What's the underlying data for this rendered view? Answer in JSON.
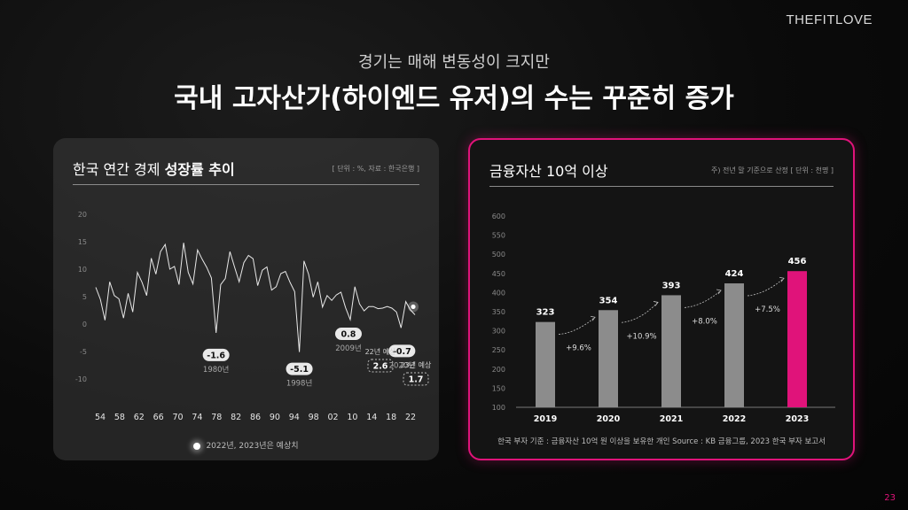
{
  "brand": "THEFITLOVE",
  "subtitle": "경기는 매해 변동성이 크지만",
  "title": "국내 고자산가(하이엔드 유저)의 수는 꾸준히 증가",
  "page_number": "23",
  "left_card": {
    "title_plain": "한국 연간 경제 ",
    "title_bold": "성장률 추이",
    "note": "[ 단위 : %, 자료 : 한국은행 ]",
    "legend": "2022년, 2023년은 예상치"
  },
  "right_card": {
    "title": "금융자산 10억 이상",
    "note": "주) 전년 말 기준으로 산정   [ 단위 : 천명 ]",
    "source": "한국 부자 기준 : 금융자산 10억 원 이상을 보유한 개인 Source :  KB 금융그룹, 2023 한국 부자 보고서"
  },
  "chart_data": [
    {
      "type": "line",
      "title": "한국 연간 경제 성장률 추이",
      "y_ticks": [
        "20",
        "15",
        "10",
        "5",
        "0",
        "-5",
        "-10"
      ],
      "ylim": [
        -10,
        20
      ],
      "x_ticks": [
        "54",
        "58",
        "62",
        "66",
        "70",
        "74",
        "78",
        "82",
        "86",
        "90",
        "94",
        "98",
        "02",
        "10",
        "14",
        "18",
        "22"
      ],
      "series": [
        {
          "x": [
            1954,
            1955,
            1956,
            1957,
            1958,
            1959,
            1960,
            1961,
            1962,
            1963,
            1964,
            1965,
            1966,
            1967,
            1968,
            1969,
            1970,
            1971,
            1972,
            1973,
            1974,
            1975,
            1976,
            1977,
            1978,
            1979,
            1980,
            1981,
            1982,
            1983,
            1984,
            1985,
            1986,
            1987,
            1988,
            1989,
            1990,
            1991,
            1992,
            1993,
            1994,
            1995,
            1996,
            1997,
            1998,
            1999,
            2000,
            2001,
            2002,
            2003,
            2004,
            2005,
            2006,
            2007,
            2008,
            2009,
            2010,
            2011,
            2012,
            2013,
            2014,
            2015,
            2016,
            2017,
            2018,
            2019,
            2020,
            2021,
            2022,
            2023
          ],
          "values": [
            6.7,
            4.5,
            0.7,
            7.7,
            5.2,
            4.6,
            1.1,
            5.6,
            2.2,
            9.4,
            7.6,
            5.2,
            12.0,
            9.1,
            13.2,
            14.5,
            10.0,
            10.5,
            7.2,
            14.8,
            9.4,
            7.3,
            13.5,
            11.8,
            10.3,
            8.4,
            -1.6,
            7.2,
            8.3,
            13.2,
            10.4,
            7.7,
            11.2,
            12.5,
            11.9,
            7.0,
            9.8,
            10.4,
            6.2,
            6.8,
            9.2,
            9.6,
            7.6,
            5.9,
            -5.1,
            11.5,
            9.1,
            4.9,
            7.7,
            3.1,
            5.2,
            4.3,
            5.3,
            5.8,
            3.0,
            0.8,
            6.8,
            3.7,
            2.4,
            3.2,
            3.2,
            2.8,
            2.9,
            3.2,
            2.9,
            2.2,
            -0.7,
            4.1,
            2.6,
            1.7
          ]
        }
      ],
      "annotations": [
        {
          "value": "-1.6",
          "label": "1980년"
        },
        {
          "value": "-5.1",
          "label": "1998년"
        },
        {
          "value": "0.8",
          "label": "2009년"
        },
        {
          "value": "-0.7",
          "label": "2020년"
        },
        {
          "value": "2.6",
          "label": "22년 예상"
        },
        {
          "value": "1.7",
          "label": "23년 예상"
        }
      ]
    },
    {
      "type": "bar",
      "title": "금융자산 10억 이상",
      "categories": [
        "2019",
        "2020",
        "2021",
        "2022",
        "2023"
      ],
      "values": [
        323,
        354,
        393,
        424,
        456
      ],
      "value_labels": [
        "323",
        "354",
        "393",
        "424",
        "456"
      ],
      "growth_labels": [
        "+9.6%",
        "+10.9%",
        "+8.0%",
        "+7.5%"
      ],
      "y_ticks": [
        "600",
        "550",
        "500",
        "450",
        "400",
        "350",
        "300",
        "250",
        "200",
        "150",
        "100"
      ],
      "ylim": [
        100,
        600
      ],
      "colors": {
        "default": "#8c8c8c",
        "highlight": "#e0137a"
      }
    }
  ]
}
